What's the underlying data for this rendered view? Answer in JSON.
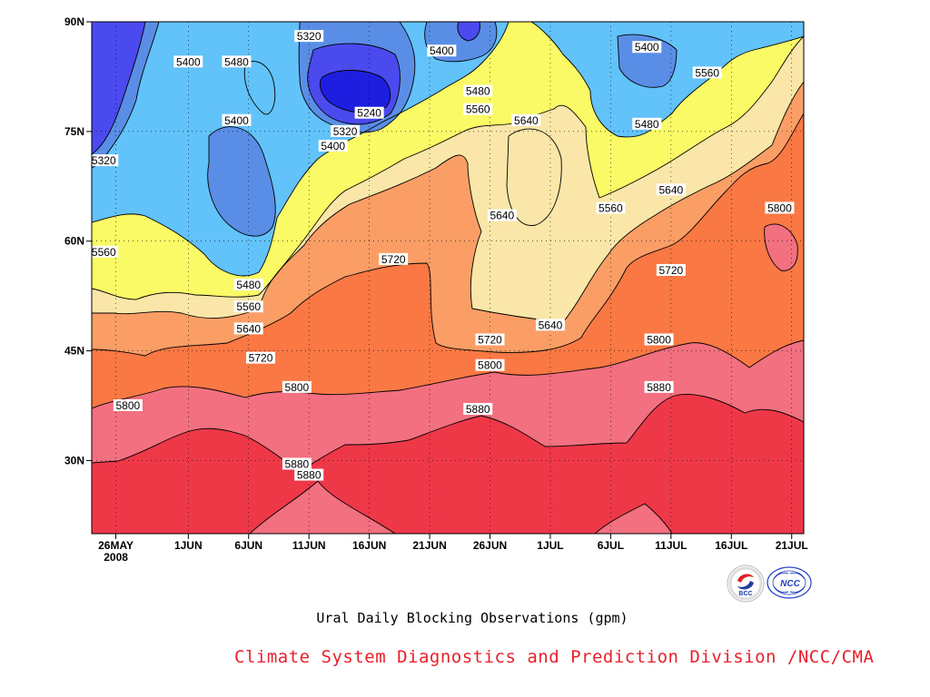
{
  "title": "Ural Daily Blocking Observations (gpm)",
  "footer": "Climate System Diagnostics and Prediction Division /NCC/CMA",
  "logos": [
    {
      "name": "bcc-logo",
      "text": "BCC"
    },
    {
      "name": "ncc-logo",
      "text": "NCC"
    }
  ],
  "colors": {
    "5240": "#1e1ee0",
    "5320": "#4a4aee",
    "5400": "#5a8ee6",
    "5480": "#62c2fa",
    "5560": "#fafa66",
    "5640": "#fae6a8",
    "5720": "#fa9e66",
    "5800": "#fa7844",
    "5880": "#f27080",
    "5960": "#ee3848"
  },
  "chart_data": {
    "type": "contour",
    "title": "Ural Daily Blocking Observations (gpm)",
    "x_ticks": [
      "26MAY\n2008",
      "1JUN",
      "6JUN",
      "11JUN",
      "16JUN",
      "21JUN",
      "26JUN",
      "1JUL",
      "6JUL",
      "11JUL",
      "16JUL",
      "21JUL"
    ],
    "y_ticks": [
      "30N",
      "45N",
      "60N",
      "75N",
      "90N"
    ],
    "xlim": [
      "24MAY 2008",
      "22JUL 2008"
    ],
    "ylim": [
      20,
      90
    ],
    "grid": "dotted",
    "contour_interval": 80,
    "contour_levels": [
      5240,
      5320,
      5400,
      5480,
      5560,
      5640,
      5720,
      5800,
      5880
    ],
    "contour_labels": [
      {
        "label": "5320",
        "date": "11JUN",
        "lat": 88
      },
      {
        "label": "5400",
        "date": "22JUN",
        "lat": 86
      },
      {
        "label": "5400",
        "date": "9JUL",
        "lat": 86.5
      },
      {
        "label": "5400",
        "date": "1JUN",
        "lat": 84.5
      },
      {
        "label": "5480",
        "date": "5JUN",
        "lat": 84.5
      },
      {
        "label": "5560",
        "date": "14JUL",
        "lat": 83
      },
      {
        "label": "5480",
        "date": "25JUN",
        "lat": 80.5
      },
      {
        "label": "5240",
        "date": "16JUN",
        "lat": 77.5
      },
      {
        "label": "5560",
        "date": "25JUN",
        "lat": 78
      },
      {
        "label": "5400",
        "date": "5JUN",
        "lat": 76.5
      },
      {
        "label": "5640",
        "date": "29JUN",
        "lat": 76.5
      },
      {
        "label": "5480",
        "date": "9JUL",
        "lat": 76
      },
      {
        "label": "5320",
        "date": "14JUN",
        "lat": 75
      },
      {
        "label": "5400",
        "date": "13JUN",
        "lat": 73
      },
      {
        "label": "5320",
        "date": "25MAY",
        "lat": 71
      },
      {
        "label": "5640",
        "date": "11JUL",
        "lat": 67
      },
      {
        "label": "5560",
        "date": "6JUL",
        "lat": 64.5
      },
      {
        "label": "5800",
        "date": "20JUL",
        "lat": 64.5
      },
      {
        "label": "5640",
        "date": "27JUN",
        "lat": 63.5
      },
      {
        "label": "5560",
        "date": "25MAY",
        "lat": 58.5
      },
      {
        "label": "5720",
        "date": "18JUN",
        "lat": 57.5
      },
      {
        "label": "5720",
        "date": "11JUL",
        "lat": 56
      },
      {
        "label": "5480",
        "date": "6JUN",
        "lat": 54
      },
      {
        "label": "5560",
        "date": "6JUN",
        "lat": 51
      },
      {
        "label": "5640",
        "date": "1JUL",
        "lat": 48.5
      },
      {
        "label": "5640",
        "date": "6JUN",
        "lat": 48
      },
      {
        "label": "5720",
        "date": "26JUN",
        "lat": 46.5
      },
      {
        "label": "5800",
        "date": "10JUL",
        "lat": 46.5
      },
      {
        "label": "5720",
        "date": "7JUN",
        "lat": 44
      },
      {
        "label": "5800",
        "date": "26JUN",
        "lat": 43
      },
      {
        "label": "5800",
        "date": "10JUN",
        "lat": 40
      },
      {
        "label": "5880",
        "date": "10JUL",
        "lat": 40
      },
      {
        "label": "5800",
        "date": "27MAY",
        "lat": 37.5
      },
      {
        "label": "5880",
        "date": "25JUN",
        "lat": 37
      },
      {
        "label": "5880",
        "date": "10JUN",
        "lat": 29.5
      },
      {
        "label": "5880",
        "date": "11JUN",
        "lat": 28
      }
    ]
  }
}
